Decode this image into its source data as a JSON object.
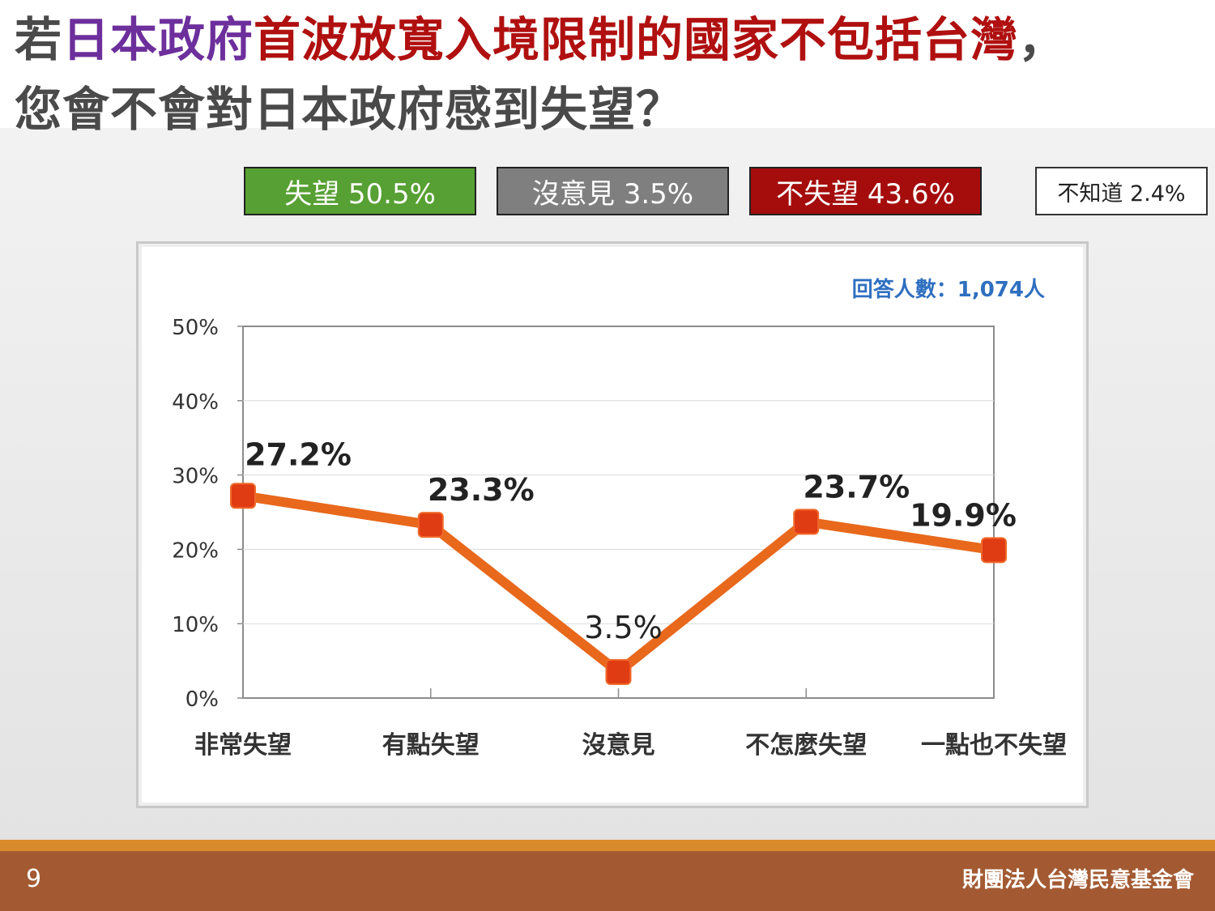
{
  "title": {
    "line1_prefix": "若",
    "line1_purple": "日本政府",
    "line1_red": "首波放寬入境限制的國家不包括台灣",
    "line1_suffix": "，",
    "line2": "您會不會對日本政府感到失望？"
  },
  "summary": {
    "disappointed": "失望 50.5%",
    "no_opinion": "沒意見 3.5%",
    "not_disappointed": "不失望 43.6%",
    "dont_know": "不知道 2.4%"
  },
  "colors": {
    "line": "#e8681c",
    "marker": "#e03c14",
    "summary_green": "#57a033",
    "summary_gray": "#7f7f7f",
    "summary_red": "#a50d0d",
    "respondents_blue": "#2f6fc0"
  },
  "chart_data": {
    "type": "line",
    "respondents": "回答人數：1,074人",
    "categories": [
      "非常失望",
      "有點失望",
      "沒意見",
      "不怎麼失望",
      "一點也不失望"
    ],
    "values": [
      27.2,
      23.3,
      3.5,
      23.7,
      19.9
    ],
    "data_labels": [
      "27.2%",
      "23.3%",
      "3.5%",
      "23.7%",
      "19.9%"
    ],
    "y_ticks": [
      "0%",
      "10%",
      "20%",
      "30%",
      "40%",
      "50%"
    ],
    "ylim": [
      0,
      50
    ],
    "grid": true,
    "legend": "none"
  },
  "footer": {
    "page_number": "9",
    "organization": "財團法人台灣民意基金會"
  }
}
